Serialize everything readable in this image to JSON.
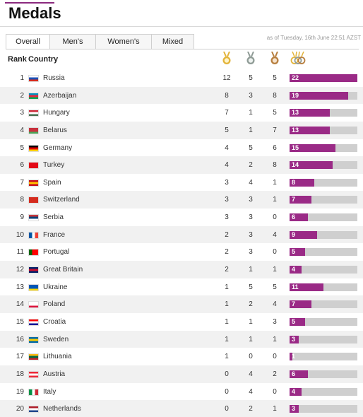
{
  "page": {
    "title": "Medals"
  },
  "tabs": [
    {
      "label": "Overall",
      "active": true
    },
    {
      "label": "Men's",
      "active": false
    },
    {
      "label": "Women's",
      "active": false
    },
    {
      "label": "Mixed",
      "active": false
    }
  ],
  "timestamp": "as of Tuesday, 16th June 22:51 AZST",
  "table": {
    "headers": {
      "rank": "Rank",
      "country": "Country"
    },
    "medal_icons": [
      "gold-medal-icon",
      "silver-medal-icon",
      "bronze-medal-icon",
      "total-medals-icon"
    ],
    "colors": {
      "gold": "#e3b43a",
      "silver": "#8f9b96",
      "bronze": "#b77f3f",
      "bar": "#9a2a86",
      "track": "#cfcfcf"
    },
    "max_total": 22,
    "rows": [
      {
        "rank": "1",
        "country": "Russia",
        "flag": [
          "#ffffff",
          "#1c4fb4",
          "#d52b1e"
        ],
        "flag_dir": "h",
        "gold": "12",
        "silver": "5",
        "bronze": "5",
        "total": 22
      },
      {
        "rank": "2",
        "country": "Azerbaijan",
        "flag": [
          "#0092bc",
          "#e8253a",
          "#00a650"
        ],
        "flag_dir": "h",
        "gold": "8",
        "silver": "3",
        "bronze": "8",
        "total": 19
      },
      {
        "rank": "3",
        "country": "Hungary",
        "flag": [
          "#ce2939",
          "#ffffff",
          "#477050"
        ],
        "flag_dir": "h",
        "gold": "7",
        "silver": "1",
        "bronze": "5",
        "total": 13
      },
      {
        "rank": "4",
        "country": "Belarus",
        "flag": [
          "#c8313e",
          "#c8313e",
          "#4aa657"
        ],
        "flag_dir": "h",
        "gold": "5",
        "silver": "1",
        "bronze": "7",
        "total": 13
      },
      {
        "rank": "5",
        "country": "Germany",
        "flag": [
          "#000000",
          "#dd0000",
          "#ffce00"
        ],
        "flag_dir": "h",
        "gold": "4",
        "silver": "5",
        "bronze": "6",
        "total": 15
      },
      {
        "rank": "6",
        "country": "Turkey",
        "flag": [
          "#e30a17",
          "#e30a17",
          "#e30a17"
        ],
        "flag_dir": "h",
        "gold": "4",
        "silver": "2",
        "bronze": "8",
        "total": 14
      },
      {
        "rank": "7",
        "country": "Spain",
        "flag": [
          "#c60b1e",
          "#ffc400",
          "#c60b1e"
        ],
        "flag_dir": "h",
        "gold": "3",
        "silver": "4",
        "bronze": "1",
        "total": 8
      },
      {
        "rank": "8",
        "country": "Switzerland",
        "flag": [
          "#d52b1e",
          "#d52b1e",
          "#d52b1e"
        ],
        "flag_dir": "h",
        "gold": "3",
        "silver": "3",
        "bronze": "1",
        "total": 7
      },
      {
        "rank": "9",
        "country": "Serbia",
        "flag": [
          "#c6363c",
          "#0c4076",
          "#ffffff"
        ],
        "flag_dir": "h",
        "gold": "3",
        "silver": "3",
        "bronze": "0",
        "total": 6
      },
      {
        "rank": "10",
        "country": "France",
        "flag": [
          "#0055a4",
          "#ffffff",
          "#ef4135"
        ],
        "flag_dir": "v",
        "gold": "2",
        "silver": "3",
        "bronze": "4",
        "total": 9
      },
      {
        "rank": "11",
        "country": "Portugal",
        "flag": [
          "#006600",
          "#ff0000",
          "#ff0000"
        ],
        "flag_dir": "v",
        "gold": "2",
        "silver": "3",
        "bronze": "0",
        "total": 5
      },
      {
        "rank": "12",
        "country": "Great Britain",
        "flag": [
          "#012169",
          "#c8102e",
          "#012169"
        ],
        "flag_dir": "h",
        "gold": "2",
        "silver": "1",
        "bronze": "1",
        "total": 4
      },
      {
        "rank": "13",
        "country": "Ukraine",
        "flag": [
          "#0057b7",
          "#0057b7",
          "#ffd700"
        ],
        "flag_dir": "h",
        "gold": "1",
        "silver": "5",
        "bronze": "5",
        "total": 11
      },
      {
        "rank": "14",
        "country": "Poland",
        "flag": [
          "#ffffff",
          "#ffffff",
          "#dc143c"
        ],
        "flag_dir": "h",
        "gold": "1",
        "silver": "2",
        "bronze": "4",
        "total": 7
      },
      {
        "rank": "15",
        "country": "Croatia",
        "flag": [
          "#ff0000",
          "#ffffff",
          "#171796"
        ],
        "flag_dir": "h",
        "gold": "1",
        "silver": "1",
        "bronze": "3",
        "total": 5
      },
      {
        "rank": "16",
        "country": "Sweden",
        "flag": [
          "#006aa7",
          "#fecc00",
          "#006aa7"
        ],
        "flag_dir": "h",
        "gold": "1",
        "silver": "1",
        "bronze": "1",
        "total": 3
      },
      {
        "rank": "17",
        "country": "Lithuania",
        "flag": [
          "#fdb913",
          "#006a44",
          "#c1272d"
        ],
        "flag_dir": "h",
        "gold": "1",
        "silver": "0",
        "bronze": "0",
        "total": 1
      },
      {
        "rank": "18",
        "country": "Austria",
        "flag": [
          "#ed2939",
          "#ffffff",
          "#ed2939"
        ],
        "flag_dir": "h",
        "gold": "0",
        "silver": "4",
        "bronze": "2",
        "total": 6
      },
      {
        "rank": "19",
        "country": "Italy",
        "flag": [
          "#009246",
          "#ffffff",
          "#ce2b37"
        ],
        "flag_dir": "v",
        "gold": "0",
        "silver": "4",
        "bronze": "0",
        "total": 4
      },
      {
        "rank": "20",
        "country": "Netherlands",
        "flag": [
          "#ae1c28",
          "#ffffff",
          "#21468b"
        ],
        "flag_dir": "h",
        "gold": "0",
        "silver": "2",
        "bronze": "1",
        "total": 3
      }
    ]
  }
}
